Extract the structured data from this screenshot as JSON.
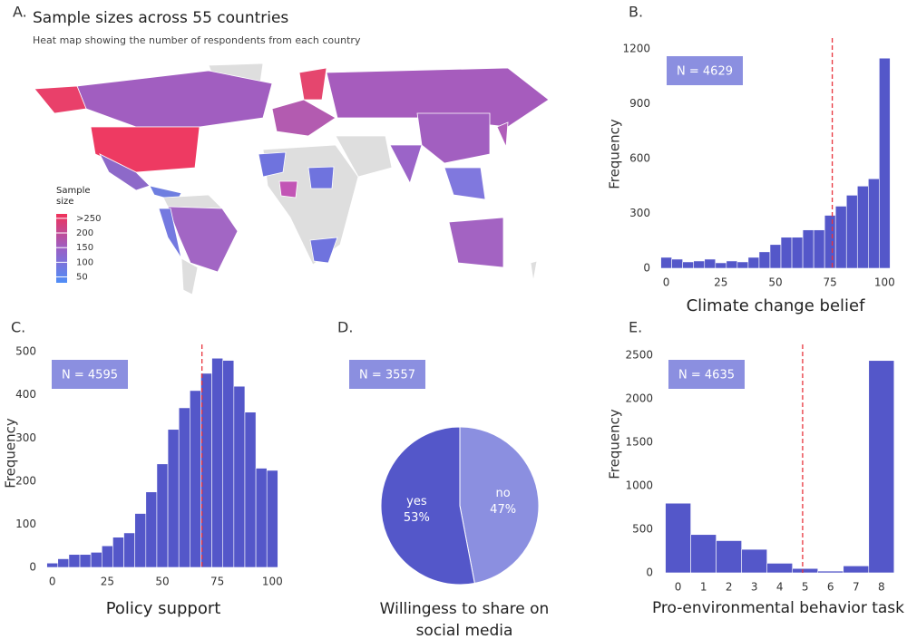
{
  "chart_data": [
    {
      "type": "map",
      "panel": "A.",
      "title": "Sample sizes across 55 countries",
      "subtitle": "Heat map showing the number of respondents from each country",
      "legend_title": "Sample size",
      "legend_ticks": [
        {
          "value": 250,
          "label": ">250"
        },
        200,
        150,
        100,
        50
      ],
      "clim": [
        30,
        265
      ],
      "colorscale": [
        "#4f8ef7",
        "#9b5fc5",
        "#f0325a"
      ]
    },
    {
      "type": "histogram",
      "panel": "B.",
      "annotation": "N = 4629",
      "xlabel": "Climate change belief",
      "ylabel": "Frequency",
      "bins": [
        -2.5,
        2.5,
        7.5,
        12.5,
        17.5,
        22.5,
        27.5,
        32.5,
        37.5,
        42.5,
        47.5,
        52.5,
        57.5,
        62.5,
        67.5,
        72.5,
        77.5,
        82.5,
        87.5,
        92.5,
        97.5,
        102.5
      ],
      "values": [
        60,
        50,
        35,
        40,
        50,
        30,
        40,
        35,
        60,
        90,
        130,
        170,
        170,
        210,
        210,
        290,
        340,
        400,
        450,
        490,
        1150
      ],
      "xlim": [
        -4,
        104
      ],
      "ylim": [
        0,
        1260
      ],
      "xticks": [
        0,
        25,
        50,
        75,
        100
      ],
      "yticks": [
        0,
        300,
        600,
        900,
        1200
      ],
      "reference_line": 76,
      "color": "#5457c9"
    },
    {
      "type": "histogram",
      "panel": "C.",
      "annotation": "N = 4595",
      "xlabel": "Policy support",
      "ylabel": "Frequency",
      "bins": [
        -2.5,
        2.5,
        7.5,
        12.5,
        17.5,
        22.5,
        27.5,
        32.5,
        37.5,
        42.5,
        47.5,
        52.5,
        57.5,
        62.5,
        67.5,
        72.5,
        77.5,
        82.5,
        87.5,
        92.5,
        97.5,
        102.5
      ],
      "values": [
        10,
        20,
        30,
        30,
        35,
        50,
        70,
        80,
        125,
        175,
        240,
        320,
        370,
        410,
        450,
        485,
        480,
        420,
        360,
        230,
        225
      ],
      "xlim": [
        -4,
        104
      ],
      "ylim": [
        0,
        517
      ],
      "xticks": [
        0,
        25,
        50,
        75,
        100
      ],
      "yticks": [
        0,
        100,
        200,
        300,
        400,
        500
      ],
      "reference_line": 68,
      "color": "#5457c9"
    },
    {
      "type": "pie",
      "panel": "D.",
      "annotation": "N = 3557",
      "xlabel": "Willingess to share on social media",
      "categories": [
        "yes",
        "no"
      ],
      "values": [
        53,
        47
      ],
      "value_labels": [
        "53%",
        "47%"
      ],
      "colors": [
        "#5457c9",
        "#8b8fe0"
      ]
    },
    {
      "type": "bar",
      "panel": "E.",
      "annotation": "N = 4635",
      "xlabel": "Pro-environmental behavior task",
      "ylabel": "Frequency",
      "x": [
        0,
        1,
        2,
        3,
        4,
        5,
        6,
        7,
        8
      ],
      "values": [
        800,
        440,
        370,
        270,
        110,
        50,
        20,
        80,
        2440
      ],
      "xlim": [
        -0.7,
        8.65
      ],
      "ylim": [
        0,
        2625
      ],
      "xticks": [
        0,
        1,
        2,
        3,
        4,
        5,
        6,
        7,
        8
      ],
      "yticks": [
        0,
        500,
        1000,
        1500,
        2000,
        2500
      ],
      "reference_line": 4.9,
      "color": "#5457c9"
    }
  ]
}
